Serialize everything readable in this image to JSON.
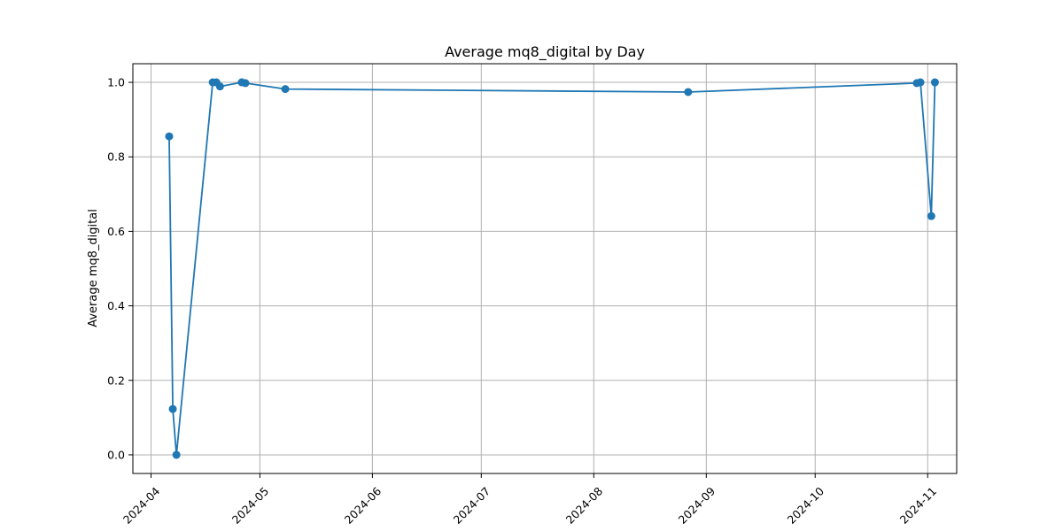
{
  "chart_data": {
    "type": "line",
    "title": "Average mq8_digital by Day",
    "xlabel": "",
    "ylabel": "Average mq8_digital",
    "x_type": "date",
    "xlim": [
      "2024-03-27",
      "2024-11-09"
    ],
    "ylim": [
      -0.05,
      1.05
    ],
    "x_ticks": [
      "2024-04-01",
      "2024-05-01",
      "2024-06-01",
      "2024-07-01",
      "2024-08-01",
      "2024-09-01",
      "2024-10-01",
      "2024-11-01"
    ],
    "x_tick_labels": [
      "2024-04",
      "2024-05",
      "2024-06",
      "2024-07",
      "2024-08",
      "2024-09",
      "2024-10",
      "2024-11"
    ],
    "y_ticks": [
      0.0,
      0.2,
      0.4,
      0.6,
      0.8,
      1.0
    ],
    "y_tick_labels": [
      "0.0",
      "0.2",
      "0.4",
      "0.6",
      "0.8",
      "1.0"
    ],
    "grid": true,
    "color": "#1f77b4",
    "marker": "circle",
    "series": [
      {
        "x": [
          "2024-04-06",
          "2024-04-07",
          "2024-04-08",
          "2024-04-18",
          "2024-04-19",
          "2024-04-20",
          "2024-04-26",
          "2024-04-27",
          "2024-05-08",
          "2024-08-27",
          "2024-10-29",
          "2024-10-30",
          "2024-11-02",
          "2024-11-03"
        ],
        "values": [
          0.855,
          0.123,
          0.0,
          1.0,
          1.0,
          0.989,
          1.0,
          0.998,
          0.982,
          0.974,
          0.998,
          1.0,
          0.641,
          1.0
        ]
      }
    ]
  }
}
